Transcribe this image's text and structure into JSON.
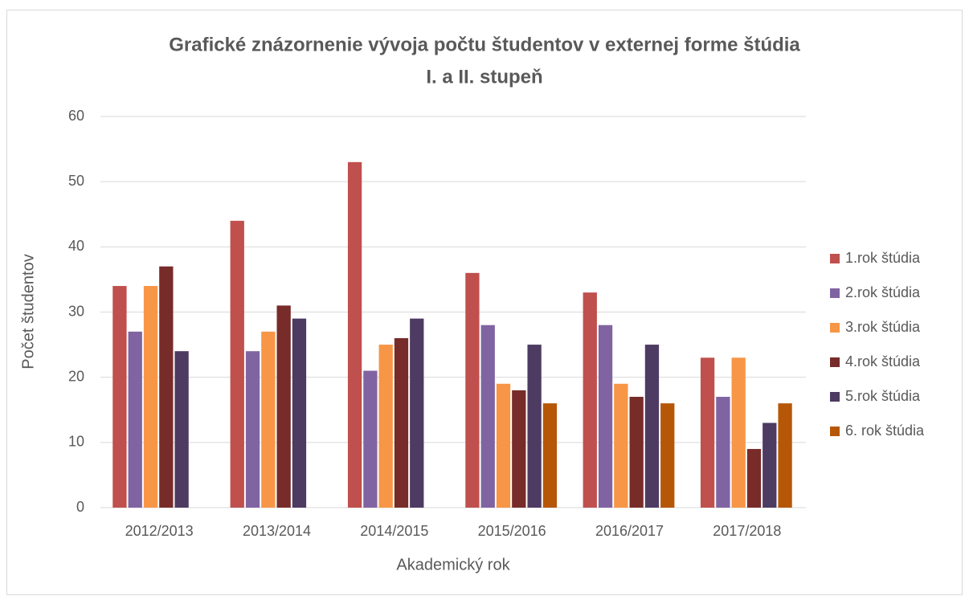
{
  "chart_data": {
    "type": "bar",
    "title": [
      "Grafické znázornenie vývoja počtu študentov v externej forme štúdia",
      "I. a II. stupeň"
    ],
    "xlabel": "Akademický rok",
    "ylabel": "Počet študentov",
    "categories": [
      "2012/2013",
      "2013/2014",
      "2014/2015",
      "2015/2016",
      "2016/2017",
      "2017/2018"
    ],
    "series": [
      {
        "name": "1.rok štúdia",
        "color": "#c0504d",
        "values": [
          34,
          44,
          53,
          36,
          33,
          23
        ]
      },
      {
        "name": "2.rok štúdia",
        "color": "#8064a2",
        "values": [
          27,
          24,
          21,
          28,
          28,
          17
        ]
      },
      {
        "name": "3.rok štúdia",
        "color": "#f79646",
        "values": [
          34,
          27,
          25,
          19,
          19,
          23
        ]
      },
      {
        "name": "4.rok štúdia",
        "color": "#772c2a",
        "values": [
          37,
          31,
          26,
          18,
          17,
          9
        ]
      },
      {
        "name": "5.rok štúdia",
        "color": "#4d3b62",
        "values": [
          24,
          29,
          29,
          25,
          25,
          13
        ]
      },
      {
        "name": "6. rok štúdia",
        "color": "#b65708",
        "values": [
          null,
          null,
          null,
          16,
          16,
          16
        ]
      }
    ],
    "ylim": [
      0,
      60
    ],
    "yticks": [
      0,
      10,
      20,
      30,
      40,
      50,
      60
    ],
    "grid": true,
    "legend": "right"
  }
}
